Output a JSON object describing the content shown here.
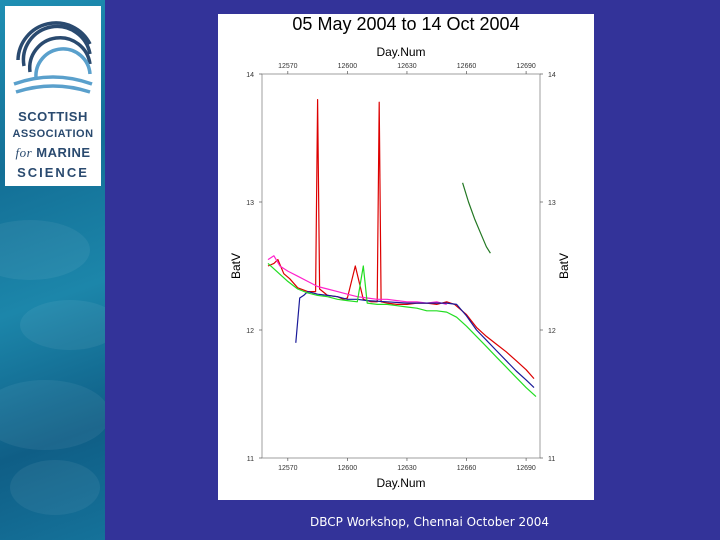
{
  "slide": {
    "footer": "DBCP Workshop, Chennai October 2004",
    "background_color": "#333399"
  },
  "logo": {
    "line1": "SCOTTISH",
    "line2": "ASSOCIATION",
    "line3_small": "for",
    "line3_main": "MARINE",
    "line4": "SCIENCE",
    "icon": "wave-arcs-icon"
  },
  "chart_data": {
    "type": "line",
    "title": "05 May 2004  to  14 Oct 2004",
    "xlabel_top": "Day.Num",
    "xlabel_bottom": "Day.Num",
    "ylabel_left": "BatV",
    "ylabel_right": "BatV",
    "xlim": [
      12557,
      12697
    ],
    "ylim": [
      11,
      14
    ],
    "xticks": [
      12570,
      12600,
      12630,
      12660,
      12690
    ],
    "yticks": [
      11,
      12,
      13,
      14
    ],
    "grid": false,
    "series": [
      {
        "name": "red",
        "color": "#dd0000",
        "x": [
          12560,
          12563,
          12565,
          12568,
          12571,
          12575,
          12580,
          12584,
          12585,
          12586,
          12590,
          12595,
          12598,
          12600,
          12604,
          12608,
          12612,
          12615,
          12616,
          12617,
          12620,
          12625,
          12630,
          12635,
          12640,
          12645,
          12650,
          12654,
          12660,
          12665,
          12670,
          12675,
          12680,
          12685,
          12690,
          12694
        ],
        "y": [
          12.5,
          12.52,
          12.55,
          12.44,
          12.4,
          12.33,
          12.3,
          12.3,
          13.8,
          12.32,
          12.27,
          12.26,
          12.24,
          12.25,
          12.5,
          12.24,
          12.22,
          12.22,
          13.78,
          12.22,
          12.21,
          12.2,
          12.2,
          12.21,
          12.21,
          12.2,
          12.22,
          12.2,
          12.12,
          12.02,
          11.95,
          11.89,
          11.83,
          11.76,
          11.69,
          11.62
        ]
      },
      {
        "name": "magenta",
        "color": "#ff22cc",
        "x": [
          12560,
          12563,
          12566,
          12570,
          12575,
          12580,
          12585,
          12590,
          12595,
          12600,
          12605,
          12610,
          12615,
          12620,
          12625,
          12630,
          12635,
          12640,
          12645,
          12650
        ],
        "y": [
          12.55,
          12.58,
          12.5,
          12.46,
          12.42,
          12.38,
          12.34,
          12.32,
          12.3,
          12.28,
          12.26,
          12.25,
          12.24,
          12.24,
          12.23,
          12.22,
          12.22,
          12.21,
          12.22,
          12.2
        ]
      },
      {
        "name": "navy",
        "color": "#1a1a99",
        "x": [
          12574,
          12576,
          12578,
          12580,
          12585,
          12590,
          12595,
          12600,
          12605,
          12610,
          12620,
          12630,
          12640,
          12650,
          12655,
          12660,
          12665,
          12670,
          12675,
          12680,
          12685,
          12690,
          12694
        ],
        "y": [
          11.9,
          12.25,
          12.27,
          12.3,
          12.28,
          12.27,
          12.26,
          12.24,
          12.24,
          12.23,
          12.22,
          12.21,
          12.21,
          12.21,
          12.2,
          12.11,
          12.0,
          11.92,
          11.84,
          11.76,
          11.68,
          11.61,
          11.55
        ]
      },
      {
        "name": "green",
        "color": "#22dd22",
        "x": [
          12560,
          12565,
          12570,
          12575,
          12580,
          12585,
          12590,
          12595,
          12600,
          12605,
          12608,
          12610,
          12615,
          12620,
          12625,
          12630,
          12635,
          12640,
          12645,
          12650,
          12655,
          12660,
          12665,
          12670,
          12675,
          12680,
          12685,
          12690,
          12695
        ],
        "y": [
          12.52,
          12.45,
          12.38,
          12.32,
          12.29,
          12.27,
          12.26,
          12.24,
          12.23,
          12.22,
          12.5,
          12.21,
          12.2,
          12.2,
          12.19,
          12.18,
          12.17,
          12.15,
          12.15,
          12.14,
          12.1,
          12.03,
          11.95,
          11.87,
          11.79,
          11.71,
          11.63,
          11.55,
          11.48
        ]
      },
      {
        "name": "darkgreen",
        "color": "#227722",
        "x": [
          12658,
          12661,
          12664,
          12667,
          12670,
          12672
        ],
        "y": [
          13.15,
          13.0,
          12.87,
          12.76,
          12.65,
          12.6
        ]
      }
    ]
  }
}
